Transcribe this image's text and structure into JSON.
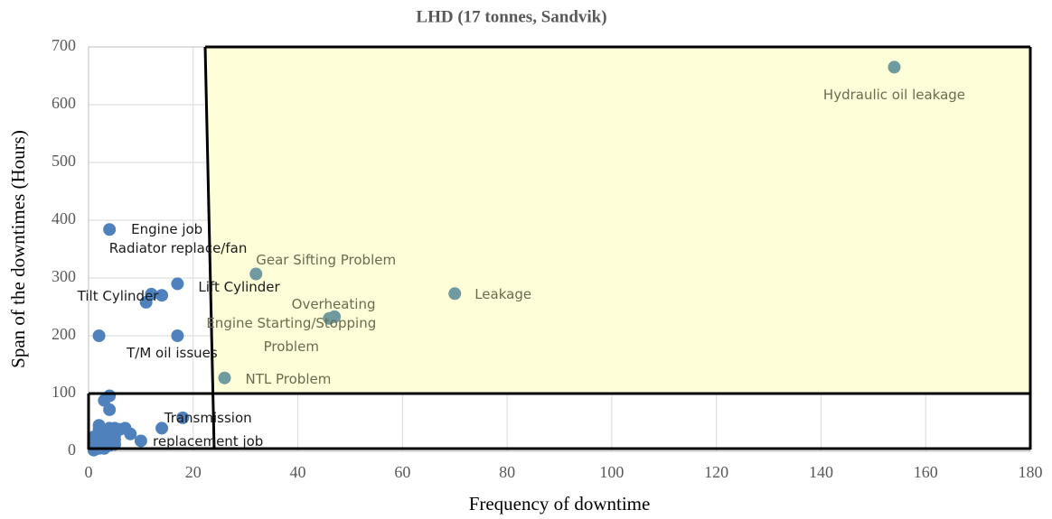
{
  "chart_data": {
    "type": "scatter",
    "title": "LHD (17 tonnes, Sandvik)",
    "x_label": "Frequency of downtime",
    "y_label": "Span of the downtimes (Hours)",
    "xlim": [
      0,
      180
    ],
    "xticks": [
      0,
      20,
      40,
      60,
      80,
      100,
      120,
      140,
      160,
      180
    ],
    "ylim": [
      0,
      700
    ],
    "yticks": [
      0,
      100,
      200,
      300,
      400,
      500,
      600,
      700
    ],
    "grid": true,
    "series": [
      {
        "color": "#4f81bd",
        "x": [
          4,
          12,
          14,
          17,
          17,
          18,
          2,
          3,
          4,
          4,
          14,
          7,
          8,
          10,
          2,
          1,
          1,
          1,
          2,
          2,
          2,
          3,
          3,
          3,
          4,
          4,
          4,
          5,
          5,
          5,
          5,
          6,
          3,
          2,
          11
        ],
        "values": [
          384,
          272,
          270,
          290,
          200,
          58,
          200,
          88,
          96,
          72,
          40,
          40,
          30,
          18,
          45,
          25,
          10,
          2,
          5,
          15,
          30,
          20,
          35,
          5,
          40,
          25,
          10,
          40,
          28,
          12,
          20,
          38,
          12,
          38,
          258
        ],
        "labels": [
          "Engine job",
          "Tilt Cylinder",
          "Radiator replace/fan",
          "Lift Cylinder",
          "T/M oil issues",
          "Transmission replacement job",
          null,
          null,
          null,
          null,
          null,
          null,
          null,
          null,
          null,
          null,
          null,
          null,
          null,
          null,
          null,
          null,
          null,
          null,
          null,
          null,
          null,
          null,
          null,
          null,
          null,
          null,
          null,
          null,
          null
        ]
      },
      {
        "color": "#6f9a9f",
        "x": [
          154,
          70,
          32,
          47,
          46,
          26
        ],
        "values": [
          665,
          273,
          307,
          233,
          230,
          127
        ],
        "labels": [
          "Hydraulic oil leakage",
          "Leakage",
          "Gear Sifting Problem",
          "Overheating",
          "Engine Starting/Stopping Problem",
          "NTL Problem"
        ]
      }
    ]
  }
}
